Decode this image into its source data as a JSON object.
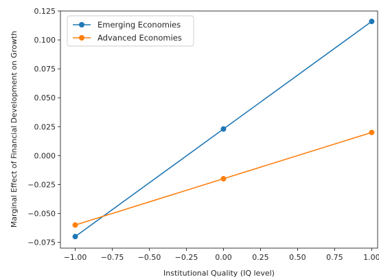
{
  "chart_data": {
    "type": "line",
    "title": "",
    "xlabel": "Institutional Quality (IQ level)",
    "ylabel": "Marginal Effect of Financial Development on Growth",
    "x": [
      -1.0,
      0.0,
      1.0
    ],
    "xlim": [
      -1.1,
      1.04
    ],
    "ylim": [
      -0.08,
      0.125
    ],
    "xticks": [
      -1.0,
      -0.75,
      -0.5,
      -0.25,
      0.0,
      0.25,
      0.5,
      0.75,
      1.0
    ],
    "xtick_labels": [
      "−1.00",
      "−0.75",
      "−0.50",
      "−0.25",
      "0.00",
      "0.25",
      "0.50",
      "0.75",
      "1.00"
    ],
    "yticks": [
      -0.075,
      -0.05,
      -0.025,
      0.0,
      0.025,
      0.05,
      0.075,
      0.1,
      0.125
    ],
    "ytick_labels": [
      "−0.075",
      "−0.050",
      "−0.025",
      "0.000",
      "0.025",
      "0.050",
      "0.075",
      "0.100",
      "0.125"
    ],
    "grid": false,
    "legend_position": "top-left",
    "series": [
      {
        "name": "Emerging Economies",
        "color": "#1f77b4",
        "values": [
          -0.07,
          0.023,
          0.116
        ]
      },
      {
        "name": "Advanced Economies",
        "color": "#ff7f0e",
        "values": [
          -0.06,
          -0.02,
          0.02
        ]
      }
    ]
  }
}
